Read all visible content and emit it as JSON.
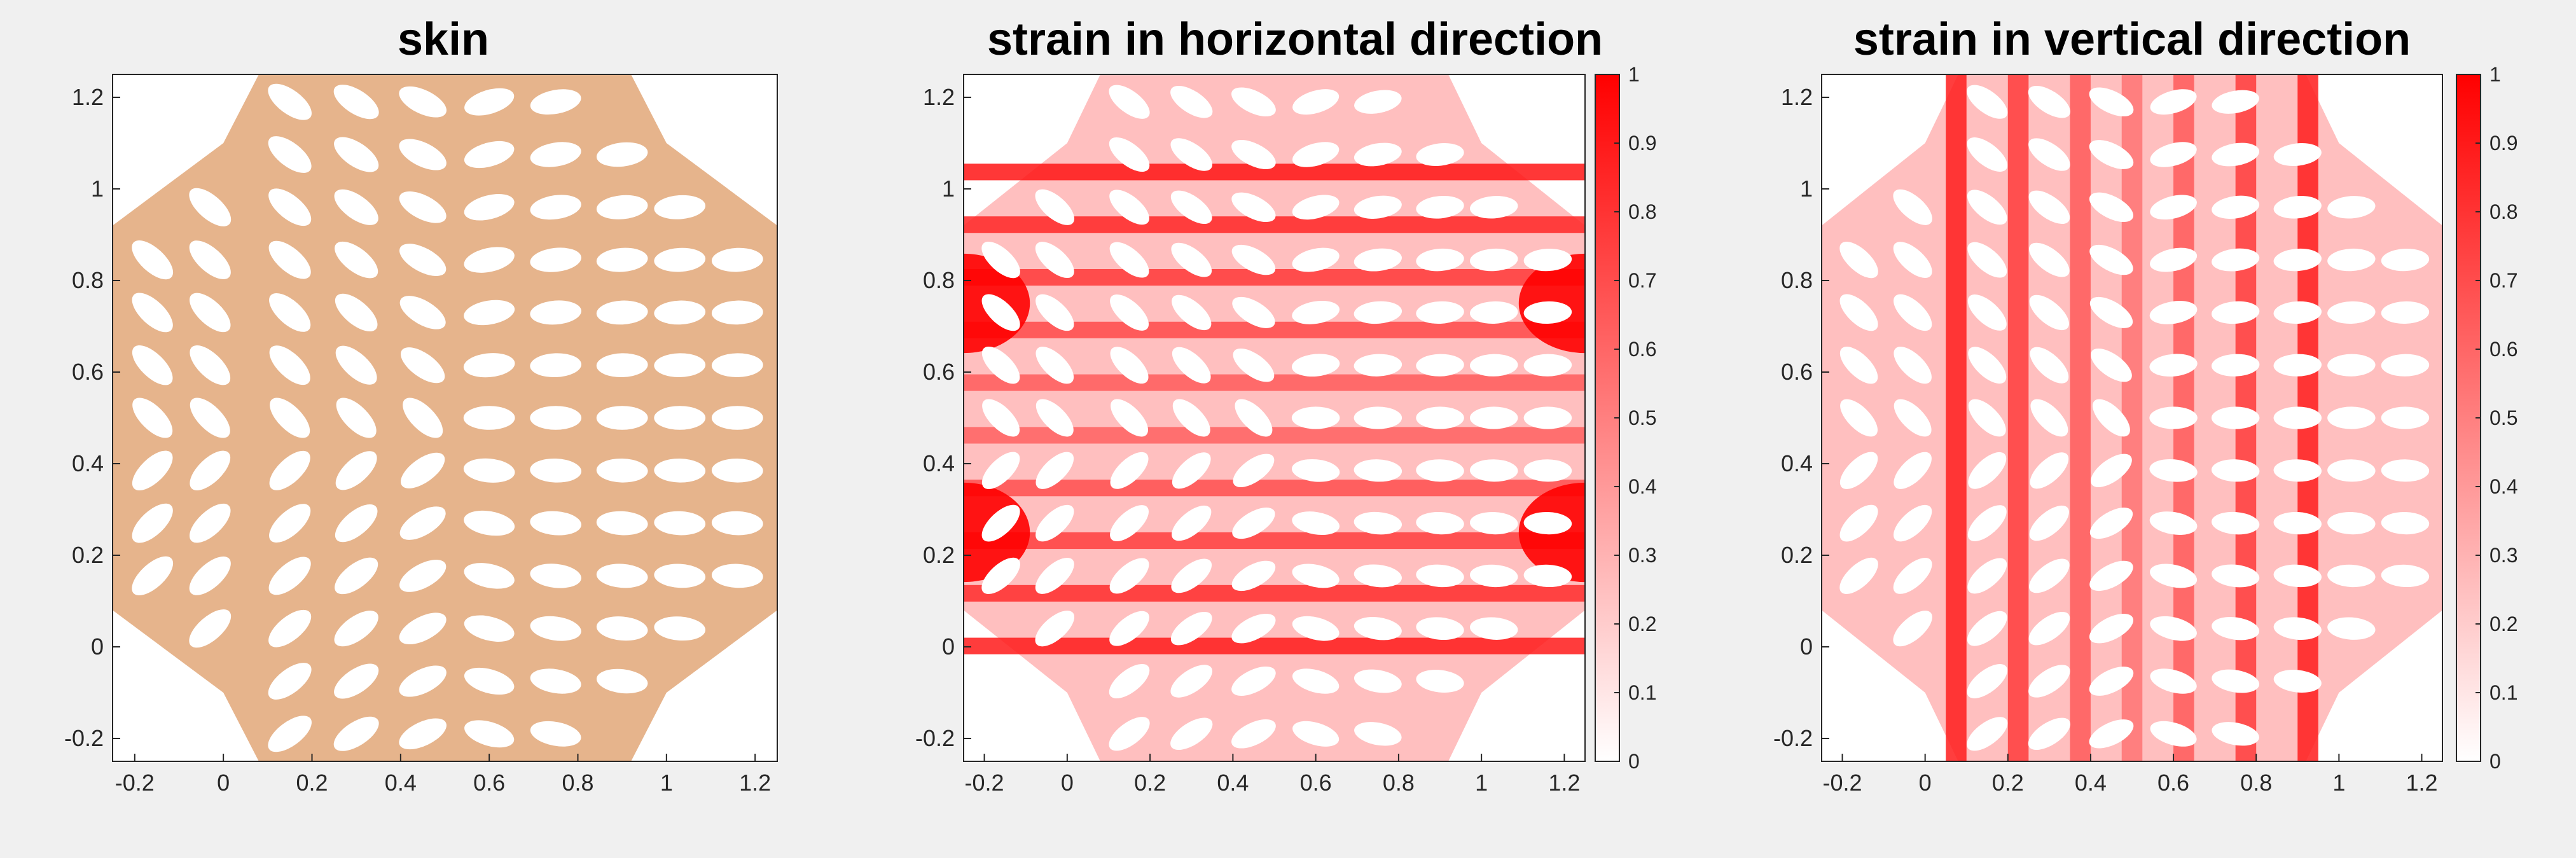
{
  "figure": {
    "background": "#f0f0f0"
  },
  "chart_data": [
    {
      "type": "heatmap",
      "title": "skin",
      "xlabel": "",
      "ylabel": "",
      "xlim": [
        -0.25,
        1.25
      ],
      "ylim": [
        -0.25,
        1.25
      ],
      "x_ticks": [
        -0.2,
        0,
        0.2,
        0.4,
        0.6,
        0.8,
        1,
        1.2
      ],
      "y_ticks": [
        -0.2,
        0,
        0.2,
        0.4,
        0.6,
        0.8,
        1,
        1.2
      ],
      "x_tick_labels": [
        "-0.2",
        "0",
        "0.2",
        "0.4",
        "0.6",
        "0.8",
        "1",
        "1.2"
      ],
      "y_tick_labels": [
        "-0.2",
        "0",
        "0.2",
        "0.4",
        "0.6",
        "0.8",
        "1",
        "1.2"
      ],
      "fill_color": "#e6b48c",
      "colorbar": null
    },
    {
      "type": "heatmap",
      "title": "strain in horizontal direction",
      "xlabel": "",
      "ylabel": "",
      "xlim": [
        -0.25,
        1.25
      ],
      "ylim": [
        -0.25,
        1.25
      ],
      "x_ticks": [
        -0.2,
        0,
        0.2,
        0.4,
        0.6,
        0.8,
        1,
        1.2
      ],
      "y_ticks": [
        -0.2,
        0,
        0.2,
        0.4,
        0.6,
        0.8,
        1,
        1.2
      ],
      "x_tick_labels": [
        "-0.2",
        "0",
        "0.2",
        "0.4",
        "0.6",
        "0.8",
        "1",
        "1.2"
      ],
      "y_tick_labels": [
        "-0.2",
        "0",
        "0.2",
        "0.4",
        "0.6",
        "0.8",
        "1",
        "1.2"
      ],
      "colormap": [
        "#ffffff",
        "#ff0000"
      ],
      "strain_direction": "horizontal",
      "colorbar": {
        "range": [
          0,
          1
        ],
        "ticks": [
          0,
          0.1,
          0.2,
          0.3,
          0.4,
          0.5,
          0.6,
          0.7,
          0.8,
          0.9,
          1
        ],
        "tick_labels": [
          "0",
          "0.1",
          "0.2",
          "0.3",
          "0.4",
          "0.5",
          "0.6",
          "0.7",
          "0.8",
          "0.9",
          "1"
        ]
      }
    },
    {
      "type": "heatmap",
      "title": "strain in vertical direction",
      "xlabel": "",
      "ylabel": "",
      "xlim": [
        -0.25,
        1.25
      ],
      "ylim": [
        -0.25,
        1.25
      ],
      "x_ticks": [
        -0.2,
        0,
        0.2,
        0.4,
        0.6,
        0.8,
        1,
        1.2
      ],
      "y_ticks": [
        -0.2,
        0,
        0.2,
        0.4,
        0.6,
        0.8,
        1,
        1.2
      ],
      "x_tick_labels": [
        "-0.2",
        "0",
        "0.2",
        "0.4",
        "0.6",
        "0.8",
        "1",
        "1.2"
      ],
      "y_tick_labels": [
        "-0.2",
        "0",
        "0.2",
        "0.4",
        "0.6",
        "0.8",
        "1",
        "1.2"
      ],
      "colormap": [
        "#ffffff",
        "#ff0000"
      ],
      "strain_direction": "vertical",
      "colorbar": {
        "range": [
          0,
          1
        ],
        "ticks": [
          0,
          0.1,
          0.2,
          0.3,
          0.4,
          0.5,
          0.6,
          0.7,
          0.8,
          0.9,
          1
        ],
        "tick_labels": [
          "0",
          "0.1",
          "0.2",
          "0.3",
          "0.4",
          "0.5",
          "0.6",
          "0.7",
          "0.8",
          "0.9",
          "1"
        ]
      }
    }
  ]
}
